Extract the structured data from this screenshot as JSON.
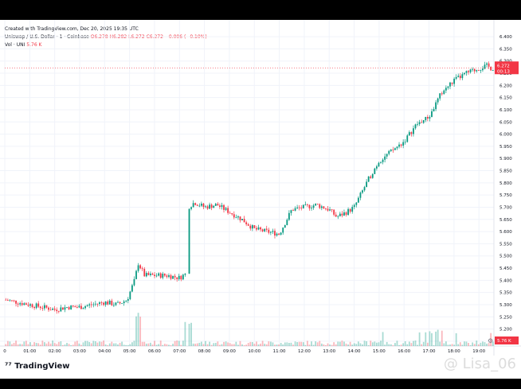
{
  "header": {
    "created": "Created with TradingView.com, Dec 20, 2025 19:35 UTC",
    "symbol": "Uniswap / U.S. Dollar · 1 · Coinbase",
    "ohlc": "O6.278 H6.282 L6.272 C6.272 −0.006 (−0.10%)",
    "vol_label": "Vol · UNI",
    "vol_value": "5.76 K"
  },
  "branding": {
    "logo": "TradingView",
    "watermark": "@ Lisa_06"
  },
  "price_tag": {
    "price": "6.272",
    "timer": "00:13"
  },
  "volume_tag": "5.76 K",
  "colors": {
    "up": "#089981",
    "down": "#f23645",
    "grid": "#f0f3fa",
    "text": "#131722"
  },
  "chart_data": {
    "type": "candlestick",
    "x_ticks": [
      "0",
      "01:00",
      "02:00",
      "03:00",
      "04:00",
      "05:00",
      "06:00",
      "07:00",
      "08:00",
      "09:00",
      "10:00",
      "11:00",
      "12:00",
      "13:00",
      "14:00",
      "15:00",
      "16:00",
      "17:00",
      "18:00",
      "19:00"
    ],
    "y_ticks": [
      "6.400",
      "6.350",
      "6.300",
      "6.250",
      "6.200",
      "6.150",
      "6.100",
      "6.050",
      "6.000",
      "5.950",
      "5.900",
      "5.850",
      "5.800",
      "5.750",
      "5.700",
      "5.650",
      "5.600",
      "5.550",
      "5.500",
      "5.450",
      "5.400",
      "5.350",
      "5.300",
      "5.250",
      "5.200",
      "5.150"
    ],
    "y_range": [
      5.13,
      6.41
    ],
    "x_range": [
      0,
      19.6
    ],
    "last_price": 6.272,
    "price_path": [
      [
        0.0,
        5.32
      ],
      [
        0.5,
        5.31
      ],
      [
        1.0,
        5.3
      ],
      [
        1.5,
        5.29
      ],
      [
        2.0,
        5.28
      ],
      [
        2.5,
        5.29
      ],
      [
        3.0,
        5.29
      ],
      [
        3.5,
        5.3
      ],
      [
        4.0,
        5.31
      ],
      [
        4.5,
        5.3
      ],
      [
        4.9,
        5.32
      ],
      [
        5.2,
        5.4
      ],
      [
        5.35,
        5.47
      ],
      [
        5.6,
        5.42
      ],
      [
        6.0,
        5.42
      ],
      [
        6.5,
        5.42
      ],
      [
        7.0,
        5.41
      ],
      [
        7.3,
        5.43
      ],
      [
        7.35,
        5.7
      ],
      [
        7.6,
        5.72
      ],
      [
        8.0,
        5.7
      ],
      [
        8.5,
        5.71
      ],
      [
        9.0,
        5.68
      ],
      [
        9.5,
        5.65
      ],
      [
        10.0,
        5.61
      ],
      [
        10.5,
        5.6
      ],
      [
        11.0,
        5.59
      ],
      [
        11.5,
        5.69
      ],
      [
        12.0,
        5.7
      ],
      [
        12.5,
        5.71
      ],
      [
        13.0,
        5.69
      ],
      [
        13.3,
        5.66
      ],
      [
        13.7,
        5.68
      ],
      [
        14.0,
        5.7
      ],
      [
        14.3,
        5.76
      ],
      [
        14.6,
        5.82
      ],
      [
        15.0,
        5.89
      ],
      [
        15.5,
        5.93
      ],
      [
        16.0,
        5.97
      ],
      [
        16.5,
        6.04
      ],
      [
        17.0,
        6.07
      ],
      [
        17.5,
        6.17
      ],
      [
        18.0,
        6.22
      ],
      [
        18.5,
        6.25
      ],
      [
        19.0,
        6.27
      ],
      [
        19.3,
        6.28
      ],
      [
        19.5,
        6.27
      ],
      [
        19.6,
        6.272
      ]
    ]
  }
}
